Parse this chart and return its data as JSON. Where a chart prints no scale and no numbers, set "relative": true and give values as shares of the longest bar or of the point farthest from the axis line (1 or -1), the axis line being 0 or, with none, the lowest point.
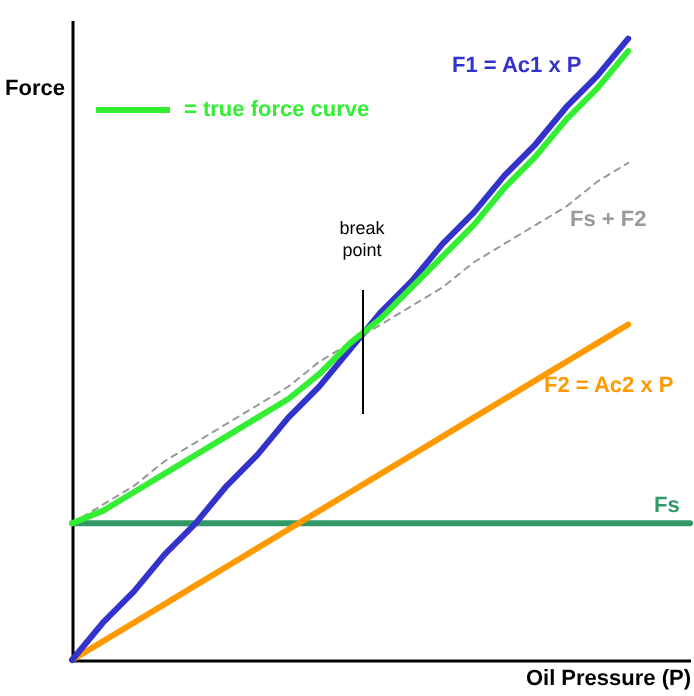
{
  "chart_data": {
    "type": "line",
    "relative": true,
    "xlabel": "Oil Pressure (P)",
    "ylabel": "Force",
    "legend": "top left",
    "annotations": [
      "break point"
    ],
    "categories": [
      null,
      null,
      null,
      null,
      null,
      null,
      null,
      null,
      null,
      null,
      null,
      null,
      null,
      null,
      null,
      null,
      null,
      null,
      null,
      null,
      null
    ],
    "series": [
      {
        "name": "Fs",
        "color": "#339966",
        "values": [
          0.22,
          0.22,
          0.22,
          0.22,
          0.22,
          0.22,
          0.22,
          0.22,
          0.22,
          0.22,
          0.22,
          0.22,
          0.22,
          0.22,
          0.22,
          0.22,
          0.22,
          0.22,
          0.22,
          0.22,
          0.22
        ]
      },
      {
        "name": "F2 = Ac2 x P",
        "color": "#ff9900",
        "values": [
          0,
          0.03,
          0.06,
          0.09,
          0.12,
          0.15,
          0.18,
          0.21,
          0.24,
          0.27,
          0.3,
          0.33,
          0.36,
          0.39,
          0.42,
          0.45,
          0.48,
          0.51,
          0.54,
          null,
          null
        ]
      },
      {
        "name": "Fs + F2",
        "color": "#999999",
        "line_style": "dashed",
        "values": [
          0.22,
          0.25,
          0.28,
          0.32,
          0.35,
          0.38,
          0.41,
          0.44,
          0.48,
          0.51,
          0.54,
          0.57,
          0.6,
          0.64,
          0.67,
          0.7,
          0.73,
          0.77,
          0.8,
          null,
          null
        ]
      },
      {
        "name": "F1 = Ac1 x P",
        "color": "#3333cc",
        "values": [
          0,
          0.06,
          0.11,
          0.17,
          0.22,
          0.28,
          0.33,
          0.39,
          0.44,
          0.5,
          0.56,
          0.61,
          0.67,
          0.72,
          0.78,
          0.83,
          0.89,
          0.94,
          1.0,
          null,
          null
        ]
      },
      {
        "name": "= true force curve",
        "color": "#33ee33",
        "values": [
          0.22,
          0.24,
          0.27,
          0.3,
          0.33,
          0.36,
          0.39,
          0.42,
          0.46,
          0.51,
          0.55,
          0.6,
          0.65,
          0.7,
          0.76,
          0.81,
          0.87,
          0.92,
          0.98,
          null,
          null
        ]
      }
    ]
  }
}
